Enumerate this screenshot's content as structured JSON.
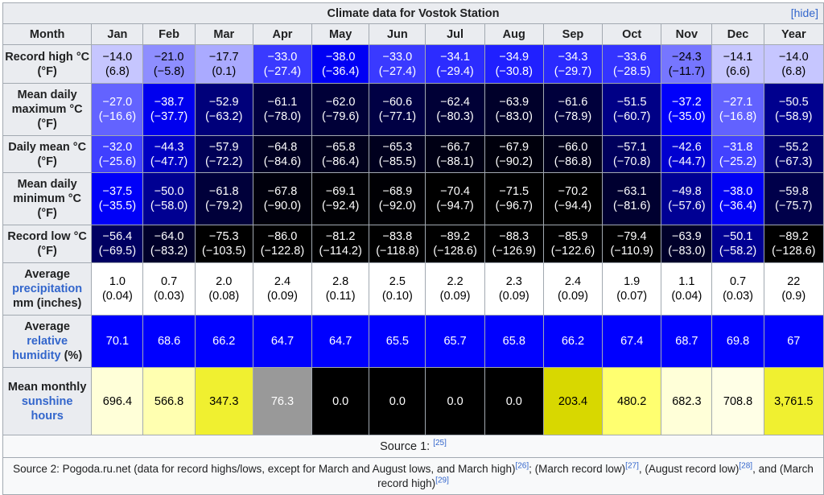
{
  "title": "Climate data for Vostok Station",
  "hide_label": "hide",
  "header": {
    "month_label": "Month",
    "months": [
      "Jan",
      "Feb",
      "Mar",
      "Apr",
      "May",
      "Jun",
      "Jul",
      "Aug",
      "Sep",
      "Oct",
      "Nov",
      "Dec"
    ],
    "year_label": "Year"
  },
  "rows": {
    "record_high": {
      "label": "Record high °C (°F)",
      "values": [
        {
          "c": "−14.0",
          "f": "(6.8)",
          "bg": "#c6c6ff",
          "fg": "#000000"
        },
        {
          "c": "−21.0",
          "f": "(−5.8)",
          "bg": "#8e8eff",
          "fg": "#000000"
        },
        {
          "c": "−17.7",
          "f": "(0.1)",
          "bg": "#aaaaff",
          "fg": "#000000"
        },
        {
          "c": "−33.0",
          "f": "(−27.4)",
          "bg": "#3a3aff",
          "fg": "#ffffff"
        },
        {
          "c": "−38.0",
          "f": "(−36.4)",
          "bg": "#0000f4",
          "fg": "#ffffff"
        },
        {
          "c": "−33.0",
          "f": "(−27.4)",
          "bg": "#3a3aff",
          "fg": "#ffffff"
        },
        {
          "c": "−34.1",
          "f": "(−29.4)",
          "bg": "#2c2cff",
          "fg": "#ffffff"
        },
        {
          "c": "−34.9",
          "f": "(−30.8)",
          "bg": "#2020ff",
          "fg": "#ffffff"
        },
        {
          "c": "−34.3",
          "f": "(−29.7)",
          "bg": "#2a2aff",
          "fg": "#ffffff"
        },
        {
          "c": "−33.6",
          "f": "(−28.5)",
          "bg": "#3434ff",
          "fg": "#ffffff"
        },
        {
          "c": "−24.3",
          "f": "(−11.7)",
          "bg": "#7676ff",
          "fg": "#000000"
        },
        {
          "c": "−14.1",
          "f": "(6.6)",
          "bg": "#c6c6ff",
          "fg": "#000000"
        },
        {
          "c": "−14.0",
          "f": "(6.8)",
          "bg": "#c6c6ff",
          "fg": "#000000"
        }
      ]
    },
    "mean_max": {
      "label": "Mean daily maximum °C (°F)",
      "values": [
        {
          "c": "−27.0",
          "f": "(−16.6)",
          "bg": "#6363ff",
          "fg": "#ffffff"
        },
        {
          "c": "−38.7",
          "f": "(−37.7)",
          "bg": "#0000ee",
          "fg": "#ffffff"
        },
        {
          "c": "−52.9",
          "f": "(−63.2)",
          "bg": "#00007a",
          "fg": "#ffffff"
        },
        {
          "c": "−61.1",
          "f": "(−78.0)",
          "bg": "#000040",
          "fg": "#ffffff"
        },
        {
          "c": "−62.0",
          "f": "(−79.6)",
          "bg": "#000038",
          "fg": "#ffffff"
        },
        {
          "c": "−60.6",
          "f": "(−77.1)",
          "bg": "#000044",
          "fg": "#ffffff"
        },
        {
          "c": "−62.4",
          "f": "(−80.3)",
          "bg": "#000036",
          "fg": "#ffffff"
        },
        {
          "c": "−63.9",
          "f": "(−83.0)",
          "bg": "#00002a",
          "fg": "#ffffff"
        },
        {
          "c": "−61.6",
          "f": "(−78.9)",
          "bg": "#00003c",
          "fg": "#ffffff"
        },
        {
          "c": "−51.5",
          "f": "(−60.7)",
          "bg": "#000086",
          "fg": "#ffffff"
        },
        {
          "c": "−37.2",
          "f": "(−35.0)",
          "bg": "#0000fa",
          "fg": "#ffffff"
        },
        {
          "c": "−27.1",
          "f": "(−16.8)",
          "bg": "#6262ff",
          "fg": "#ffffff"
        },
        {
          "c": "−50.5",
          "f": "(−58.9)",
          "bg": "#00008e",
          "fg": "#ffffff"
        }
      ]
    },
    "daily_mean": {
      "label": "Daily mean °C (°F)",
      "values": [
        {
          "c": "−32.0",
          "f": "(−25.6)",
          "bg": "#4040ff",
          "fg": "#ffffff"
        },
        {
          "c": "−44.3",
          "f": "(−47.7)",
          "bg": "#0000c2",
          "fg": "#ffffff"
        },
        {
          "c": "−57.9",
          "f": "(−72.2)",
          "bg": "#000056",
          "fg": "#ffffff"
        },
        {
          "c": "−64.8",
          "f": "(−84.6)",
          "bg": "#000022",
          "fg": "#ffffff"
        },
        {
          "c": "−65.8",
          "f": "(−86.4)",
          "bg": "#00001c",
          "fg": "#ffffff"
        },
        {
          "c": "−65.3",
          "f": "(−85.5)",
          "bg": "#00001e",
          "fg": "#ffffff"
        },
        {
          "c": "−66.7",
          "f": "(−88.1)",
          "bg": "#000014",
          "fg": "#ffffff"
        },
        {
          "c": "−67.9",
          "f": "(−90.2)",
          "bg": "#00000c",
          "fg": "#ffffff"
        },
        {
          "c": "−66.0",
          "f": "(−86.8)",
          "bg": "#00001a",
          "fg": "#ffffff"
        },
        {
          "c": "−57.1",
          "f": "(−70.8)",
          "bg": "#00005c",
          "fg": "#ffffff"
        },
        {
          "c": "−42.6",
          "f": "(−44.7)",
          "bg": "#0000d0",
          "fg": "#ffffff"
        },
        {
          "c": "−31.8",
          "f": "(−25.2)",
          "bg": "#4242ff",
          "fg": "#ffffff"
        },
        {
          "c": "−55.2",
          "f": "(−67.3)",
          "bg": "#00006a",
          "fg": "#ffffff"
        }
      ]
    },
    "mean_min": {
      "label": "Mean daily minimum °C (°F)",
      "values": [
        {
          "c": "−37.5",
          "f": "(−35.5)",
          "bg": "#0000f8",
          "fg": "#ffffff"
        },
        {
          "c": "−50.0",
          "f": "(−58.0)",
          "bg": "#000092",
          "fg": "#ffffff"
        },
        {
          "c": "−61.8",
          "f": "(−79.2)",
          "bg": "#00003a",
          "fg": "#ffffff"
        },
        {
          "c": "−67.8",
          "f": "(−90.0)",
          "bg": "#00000c",
          "fg": "#ffffff"
        },
        {
          "c": "−69.1",
          "f": "(−92.4)",
          "bg": "#000004",
          "fg": "#ffffff"
        },
        {
          "c": "−68.9",
          "f": "(−92.0)",
          "bg": "#000004",
          "fg": "#ffffff"
        },
        {
          "c": "−70.4",
          "f": "(−94.7)",
          "bg": "#000000",
          "fg": "#ffffff"
        },
        {
          "c": "−71.5",
          "f": "(−96.7)",
          "bg": "#000000",
          "fg": "#ffffff"
        },
        {
          "c": "−70.2",
          "f": "(−94.4)",
          "bg": "#000000",
          "fg": "#ffffff"
        },
        {
          "c": "−63.1",
          "f": "(−81.6)",
          "bg": "#000030",
          "fg": "#ffffff"
        },
        {
          "c": "−49.8",
          "f": "(−57.6)",
          "bg": "#000094",
          "fg": "#ffffff"
        },
        {
          "c": "−38.0",
          "f": "(−36.4)",
          "bg": "#0000f4",
          "fg": "#ffffff"
        },
        {
          "c": "−59.8",
          "f": "(−75.7)",
          "bg": "#00004a",
          "fg": "#ffffff"
        }
      ]
    },
    "record_low": {
      "label": "Record low °C (°F)",
      "values": [
        {
          "c": "−56.4",
          "f": "(−69.5)",
          "bg": "#000062",
          "fg": "#ffffff"
        },
        {
          "c": "−64.0",
          "f": "(−83.2)",
          "bg": "#00002a",
          "fg": "#ffffff"
        },
        {
          "c": "−75.3",
          "f": "(−103.5)",
          "bg": "#000000",
          "fg": "#ffffff"
        },
        {
          "c": "−86.0",
          "f": "(−122.8)",
          "bg": "#000000",
          "fg": "#ffffff"
        },
        {
          "c": "−81.2",
          "f": "(−114.2)",
          "bg": "#000000",
          "fg": "#ffffff"
        },
        {
          "c": "−83.8",
          "f": "(−118.8)",
          "bg": "#000000",
          "fg": "#ffffff"
        },
        {
          "c": "−89.2",
          "f": "(−128.6)",
          "bg": "#000000",
          "fg": "#ffffff"
        },
        {
          "c": "−88.3",
          "f": "(−126.9)",
          "bg": "#000000",
          "fg": "#ffffff"
        },
        {
          "c": "−85.9",
          "f": "(−122.6)",
          "bg": "#000000",
          "fg": "#ffffff"
        },
        {
          "c": "−79.4",
          "f": "(−110.9)",
          "bg": "#000000",
          "fg": "#ffffff"
        },
        {
          "c": "−63.9",
          "f": "(−83.0)",
          "bg": "#00002a",
          "fg": "#ffffff"
        },
        {
          "c": "−50.1",
          "f": "(−58.2)",
          "bg": "#000092",
          "fg": "#ffffff"
        },
        {
          "c": "−89.2",
          "f": "(−128.6)",
          "bg": "#000000",
          "fg": "#ffffff"
        }
      ]
    },
    "precipitation": {
      "label_pre": "Average",
      "label_link": "precipitation",
      "label_post": "mm (inches)",
      "values": [
        {
          "c": "1.0",
          "f": "(0.04)",
          "bg": "#ffffff",
          "fg": "#000000"
        },
        {
          "c": "0.7",
          "f": "(0.03)",
          "bg": "#ffffff",
          "fg": "#000000"
        },
        {
          "c": "2.0",
          "f": "(0.08)",
          "bg": "#ffffff",
          "fg": "#000000"
        },
        {
          "c": "2.4",
          "f": "(0.09)",
          "bg": "#ffffff",
          "fg": "#000000"
        },
        {
          "c": "2.8",
          "f": "(0.11)",
          "bg": "#ffffff",
          "fg": "#000000"
        },
        {
          "c": "2.5",
          "f": "(0.10)",
          "bg": "#ffffff",
          "fg": "#000000"
        },
        {
          "c": "2.2",
          "f": "(0.09)",
          "bg": "#ffffff",
          "fg": "#000000"
        },
        {
          "c": "2.3",
          "f": "(0.09)",
          "bg": "#ffffff",
          "fg": "#000000"
        },
        {
          "c": "2.4",
          "f": "(0.09)",
          "bg": "#ffffff",
          "fg": "#000000"
        },
        {
          "c": "1.9",
          "f": "(0.07)",
          "bg": "#ffffff",
          "fg": "#000000"
        },
        {
          "c": "1.1",
          "f": "(0.04)",
          "bg": "#ffffff",
          "fg": "#000000"
        },
        {
          "c": "0.7",
          "f": "(0.03)",
          "bg": "#ffffff",
          "fg": "#000000"
        },
        {
          "c": "22",
          "f": "(0.9)",
          "bg": "#ffffff",
          "fg": "#000000"
        }
      ]
    },
    "humidity": {
      "label_pre": "Average",
      "label_link": "relative humidity",
      "label_post": "(%)",
      "values": [
        {
          "v": "70.1",
          "bg": "#0000ff",
          "fg": "#ffffff"
        },
        {
          "v": "68.6",
          "bg": "#0000ff",
          "fg": "#ffffff"
        },
        {
          "v": "66.2",
          "bg": "#0000ff",
          "fg": "#ffffff"
        },
        {
          "v": "64.7",
          "bg": "#0000ff",
          "fg": "#ffffff"
        },
        {
          "v": "64.7",
          "bg": "#0000ff",
          "fg": "#ffffff"
        },
        {
          "v": "65.5",
          "bg": "#0000ff",
          "fg": "#ffffff"
        },
        {
          "v": "65.7",
          "bg": "#0000ff",
          "fg": "#ffffff"
        },
        {
          "v": "65.8",
          "bg": "#0000ff",
          "fg": "#ffffff"
        },
        {
          "v": "66.2",
          "bg": "#0000ff",
          "fg": "#ffffff"
        },
        {
          "v": "67.4",
          "bg": "#0000ff",
          "fg": "#ffffff"
        },
        {
          "v": "68.7",
          "bg": "#0000ff",
          "fg": "#ffffff"
        },
        {
          "v": "69.8",
          "bg": "#0000ff",
          "fg": "#ffffff"
        },
        {
          "v": "67",
          "bg": "#0000ff",
          "fg": "#ffffff"
        }
      ]
    },
    "sunshine": {
      "label_pre": "Mean monthly",
      "label_link": "sunshine hours",
      "values": [
        {
          "v": "696.4",
          "bg": "#ffffd8",
          "fg": "#000000"
        },
        {
          "v": "566.8",
          "bg": "#ffffb0",
          "fg": "#000000"
        },
        {
          "v": "347.3",
          "bg": "#f0f030",
          "fg": "#000000"
        },
        {
          "v": "76.3",
          "bg": "#999999",
          "fg": "#ffffff"
        },
        {
          "v": "0.0",
          "bg": "#000000",
          "fg": "#ffffff"
        },
        {
          "v": "0.0",
          "bg": "#000000",
          "fg": "#ffffff"
        },
        {
          "v": "0.0",
          "bg": "#000000",
          "fg": "#ffffff"
        },
        {
          "v": "0.0",
          "bg": "#000000",
          "fg": "#ffffff"
        },
        {
          "v": "203.4",
          "bg": "#d8d800",
          "fg": "#000000"
        },
        {
          "v": "480.2",
          "bg": "#ffff70",
          "fg": "#000000"
        },
        {
          "v": "682.3",
          "bg": "#ffffd8",
          "fg": "#000000"
        },
        {
          "v": "708.8",
          "bg": "#ffffe6",
          "fg": "#000000"
        },
        {
          "v": "3,761.5",
          "bg": "#f0f030",
          "fg": "#000000"
        }
      ]
    }
  },
  "source1": {
    "text": "Source 1: ",
    "ref": "[25]"
  },
  "source2": {
    "t1": "Source 2: Pogoda.ru.net (data for record highs/lows, except for March and August lows, and March high)",
    "r1": "[26]",
    "t2": "; (March record low)",
    "r2": "[27]",
    "t3": ", (August record low)",
    "r3": "[28]",
    "t4": ", and (March record high)",
    "r4": "[29]"
  }
}
